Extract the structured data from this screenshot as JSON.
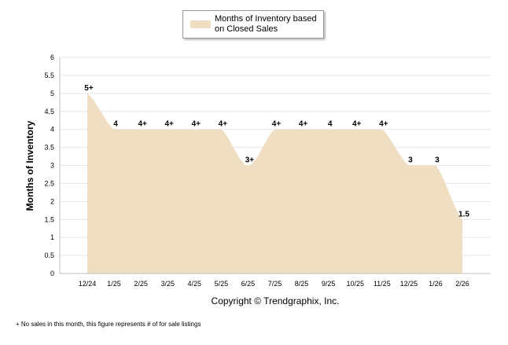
{
  "chart_data": {
    "type": "area",
    "categories": [
      "12/24",
      "1/25",
      "2/25",
      "3/25",
      "4/25",
      "5/25",
      "6/25",
      "7/25",
      "8/25",
      "9/25",
      "10/25",
      "11/25",
      "12/25",
      "1/26",
      "2/26"
    ],
    "series": [
      {
        "name": "Months of Inventory based on Closed Sales",
        "values": [
          5,
          4,
          4,
          4,
          4,
          4,
          3,
          4,
          4,
          4,
          4,
          4,
          3,
          3,
          1.5
        ],
        "data_labels": [
          "5+",
          "4",
          "4+",
          "4+",
          "4+",
          "4+",
          "3+",
          "4+",
          "4+",
          "4",
          "4+",
          "4+",
          "3",
          "3",
          "1.5"
        ]
      }
    ],
    "ylabel": "Months of Inventory",
    "ylim": [
      0,
      6
    ],
    "yticks": [
      "0",
      "0.5",
      "1",
      "1.5",
      "2",
      "2.5",
      "3",
      "3.5",
      "4",
      "4.5",
      "5",
      "5.5",
      "6"
    ],
    "grid": true,
    "legend": "top-center",
    "credit": "Copyright © Trendgraphix, Inc.",
    "footnote": "+ No sales in this month, this figure represents # of for sale listings",
    "colors": {
      "fill": "#EFDEC1",
      "grid": "#E6E6E6",
      "axis": "#C0C0C0",
      "text": "#000000"
    }
  }
}
